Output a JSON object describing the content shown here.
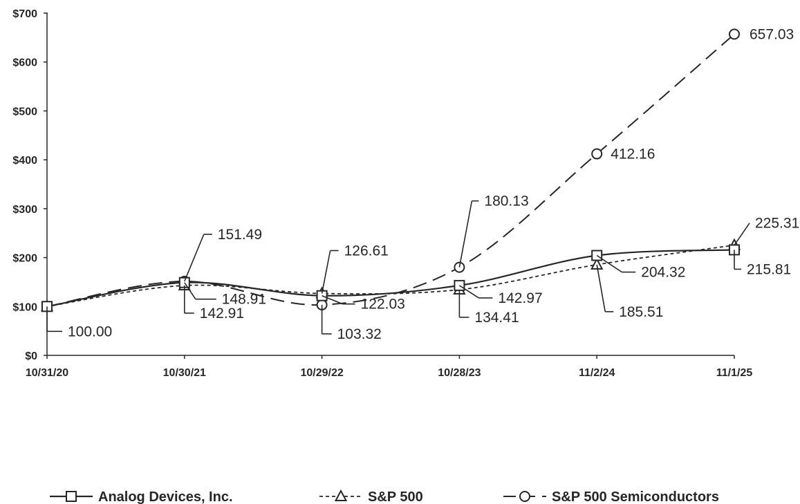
{
  "chart_data": {
    "type": "line",
    "categories": [
      "10/31/20",
      "10/30/21",
      "10/29/22",
      "10/28/23",
      "11/2/24",
      "11/1/25"
    ],
    "y_ticks": [
      "$0",
      "$100",
      "$200",
      "$300",
      "$400",
      "$500",
      "$600",
      "$700"
    ],
    "ylim": [
      0,
      700
    ],
    "title": "",
    "xlabel": "",
    "ylabel": "",
    "grid": false,
    "legend_position": "bottom",
    "series": [
      {
        "name": "Analog Devices, Inc.",
        "marker": "square",
        "line_style": "solid",
        "values": [
          100.0,
          148.91,
          122.03,
          142.97,
          204.32,
          215.81
        ],
        "labels": [
          "100.00",
          "148.91",
          "122.03",
          "142.97",
          "204.32",
          "215.81"
        ]
      },
      {
        "name": "S&P 500",
        "marker": "triangle",
        "line_style": "dotted",
        "values": [
          100.0,
          142.91,
          126.61,
          134.41,
          185.51,
          225.31
        ],
        "labels": [
          "",
          "142.91",
          "126.61",
          "134.41",
          "185.51",
          "225.31"
        ]
      },
      {
        "name": "S&P 500 Semiconductors",
        "marker": "circle",
        "line_style": "dashed",
        "values": [
          100.0,
          151.49,
          103.32,
          180.13,
          412.16,
          657.03
        ],
        "labels": [
          "",
          "151.49",
          "103.32",
          "180.13",
          "412.16",
          "657.03"
        ]
      }
    ],
    "colors": {
      "line": "#262626",
      "background": "#ffffff"
    }
  }
}
